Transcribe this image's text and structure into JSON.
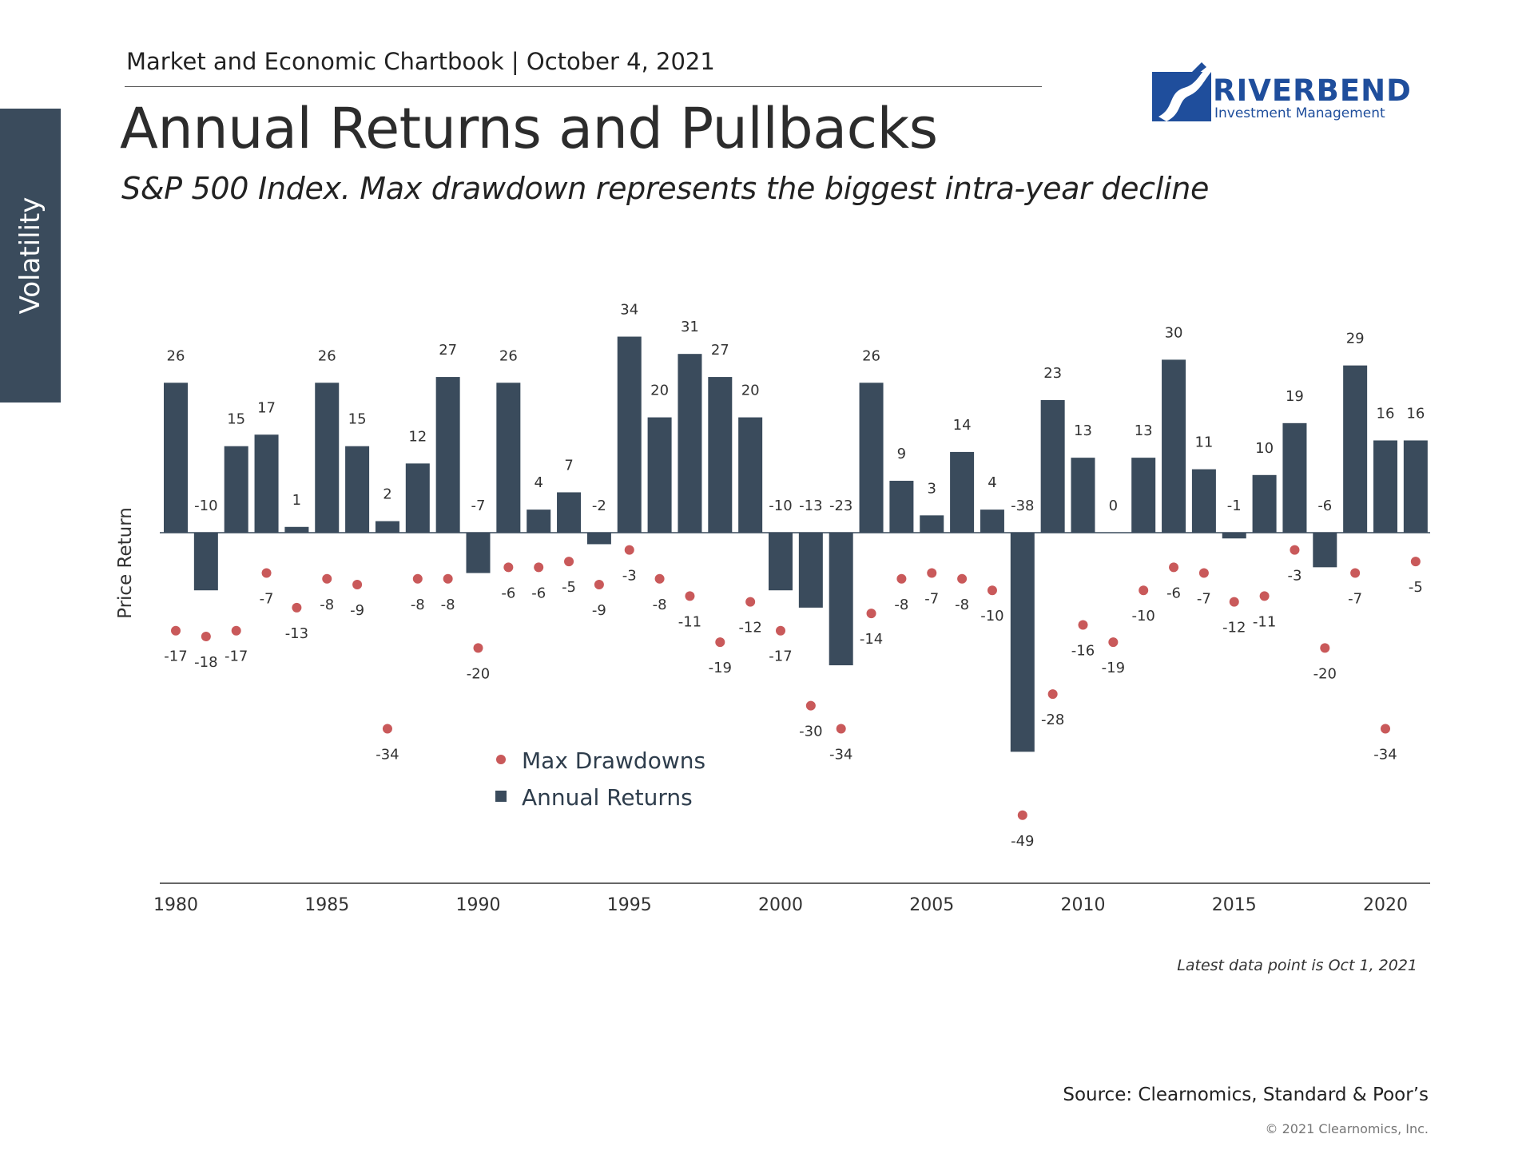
{
  "header": {
    "chartbook": "Market and Economic Chartbook | October 4, 2021",
    "title": "Annual Returns and Pullbacks",
    "subtitle": "S&P 500 Index. Max drawdown represents the biggest intra-year decline"
  },
  "side_tab": {
    "label": "Volatility"
  },
  "logo": {
    "name": "RIVERBEND",
    "tagline": "Investment Management",
    "color": "#1f4e9c"
  },
  "chart_data": {
    "type": "bar",
    "ylabel": "Price Return",
    "xlabel": "",
    "x": [
      1980,
      1981,
      1982,
      1983,
      1984,
      1985,
      1986,
      1987,
      1988,
      1989,
      1990,
      1991,
      1992,
      1993,
      1994,
      1995,
      1996,
      1997,
      1998,
      1999,
      2000,
      2001,
      2002,
      2003,
      2004,
      2005,
      2006,
      2007,
      2008,
      2009,
      2010,
      2011,
      2012,
      2013,
      2014,
      2015,
      2016,
      2017,
      2018,
      2019,
      2020,
      2021
    ],
    "x_ticks": [
      "1980",
      "1985",
      "1990",
      "1995",
      "2000",
      "2005",
      "2010",
      "2015",
      "2020"
    ],
    "x_tick_values": [
      1980,
      1985,
      1990,
      1995,
      2000,
      2005,
      2010,
      2015,
      2020
    ],
    "ylim": [
      -55,
      42
    ],
    "grid": false,
    "legend_position": "center-bottom",
    "series": [
      {
        "name": "Annual Returns",
        "mark": "bar",
        "color": "#3a4b5c",
        "values": [
          26,
          -10,
          15,
          17,
          1,
          26,
          15,
          2,
          12,
          27,
          -7,
          26,
          4,
          7,
          -2,
          34,
          20,
          31,
          27,
          20,
          -10,
          -13,
          -23,
          26,
          9,
          3,
          14,
          4,
          -38,
          23,
          13,
          0,
          13,
          30,
          11,
          -1,
          10,
          19,
          -6,
          29,
          16,
          16
        ]
      },
      {
        "name": "Max Drawdowns",
        "mark": "point",
        "color": "#c9595a",
        "values": [
          -17,
          -18,
          -17,
          -7,
          -13,
          -8,
          -9,
          -34,
          -8,
          -8,
          -20,
          -6,
          -6,
          -5,
          -9,
          -3,
          -8,
          -11,
          -19,
          -12,
          -17,
          -30,
          -34,
          -14,
          -8,
          -7,
          -8,
          -10,
          -49,
          -28,
          -16,
          -19,
          -10,
          -6,
          -7,
          -12,
          -11,
          -3,
          -20,
          -7,
          -34,
          -5
        ]
      }
    ]
  },
  "footer": {
    "latest": "Latest data point is Oct 1, 2021",
    "source": "Source: Clearnomics, Standard & Poor’s",
    "copyright": "© 2021 Clearnomics, Inc."
  }
}
